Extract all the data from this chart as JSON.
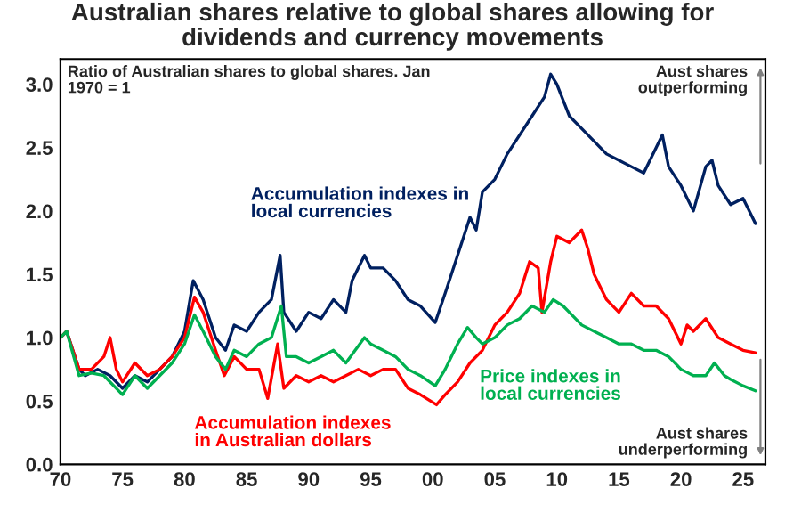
{
  "chart_data": {
    "type": "line",
    "title": "Australian shares relative to global shares allowing for\ndividends and currency movements",
    "xlim": [
      1970,
      2026.8
    ],
    "xticks": [
      {
        "value": 1970,
        "label": "70"
      },
      {
        "value": 1975,
        "label": "75"
      },
      {
        "value": 1980,
        "label": "80"
      },
      {
        "value": 1985,
        "label": "85"
      },
      {
        "value": 1990,
        "label": "90"
      },
      {
        "value": 1995,
        "label": "95"
      },
      {
        "value": 2000,
        "label": "00"
      },
      {
        "value": 2005,
        "label": "05"
      },
      {
        "value": 2010,
        "label": "10"
      },
      {
        "value": 2015,
        "label": "15"
      },
      {
        "value": 2020,
        "label": "20"
      },
      {
        "value": 2025,
        "label": "25"
      }
    ],
    "ylim": [
      0,
      3.2
    ],
    "yticks": [
      {
        "value": 0,
        "label": "0.0"
      },
      {
        "value": 0.5,
        "label": "0.5"
      },
      {
        "value": 1,
        "label": "1.0"
      },
      {
        "value": 1.5,
        "label": "1.5"
      },
      {
        "value": 2,
        "label": "2.0"
      },
      {
        "value": 2.5,
        "label": "2.5"
      },
      {
        "value": 3,
        "label": "3.0"
      }
    ],
    "grid": false,
    "legend": false,
    "marker": "none",
    "line_style": "solid",
    "annotations": [
      "Ratio of Australian shares to global shares. Jan 1970 = 1",
      "Aust shares\noutperforming",
      "Aust shares\nunderperforming"
    ],
    "series": [
      {
        "name": "Accumulation indexes in\nlocal currencies",
        "color": "#002060",
        "x": [
          1970,
          1970.5,
          1971.5,
          1972,
          1973,
          1974,
          1975,
          1976,
          1977,
          1978,
          1979,
          1980,
          1980.7,
          1981.5,
          1982.5,
          1983.3,
          1984,
          1985,
          1986,
          1987,
          1987.7,
          1988,
          1989,
          1990,
          1991,
          1992,
          1993,
          1993.5,
          1994.5,
          1995,
          1996,
          1997,
          1998,
          1999,
          2000.2,
          2001,
          2002,
          2003,
          2003.5,
          2004,
          2005,
          2006,
          2007,
          2008,
          2009,
          2009.5,
          2010,
          2011,
          2012,
          2013,
          2014,
          2015,
          2016,
          2017,
          2018,
          2018.5,
          2019,
          2020,
          2021,
          2022,
          2022.5,
          2023,
          2024,
          2025,
          2026
        ],
        "values": [
          1.0,
          1.05,
          0.75,
          0.7,
          0.75,
          0.7,
          0.6,
          0.7,
          0.65,
          0.75,
          0.85,
          1.05,
          1.45,
          1.3,
          1.0,
          0.9,
          1.1,
          1.05,
          1.2,
          1.3,
          1.65,
          1.2,
          1.05,
          1.2,
          1.15,
          1.3,
          1.2,
          1.45,
          1.65,
          1.55,
          1.55,
          1.45,
          1.3,
          1.25,
          1.12,
          1.35,
          1.65,
          1.95,
          1.85,
          2.15,
          2.25,
          2.45,
          2.6,
          2.75,
          2.9,
          3.08,
          3.0,
          2.75,
          2.65,
          2.55,
          2.45,
          2.4,
          2.35,
          2.3,
          2.5,
          2.6,
          2.35,
          2.2,
          2.0,
          2.35,
          2.4,
          2.2,
          2.05,
          2.1,
          1.9
        ]
      },
      {
        "name": "Accumulation indexes\nin Australian dollars",
        "color": "#ff0000",
        "x": [
          1970,
          1970.5,
          1971.5,
          1972.5,
          1973.5,
          1974,
          1974.5,
          1975,
          1976,
          1977,
          1978,
          1979,
          1980,
          1980.8,
          1981.5,
          1982.5,
          1983.2,
          1984,
          1985,
          1986,
          1986.7,
          1987.5,
          1988,
          1989,
          1990,
          1991,
          1992,
          1993,
          1994,
          1995,
          1996,
          1997,
          1998,
          1999,
          2000.3,
          2001,
          2002,
          2003,
          2004,
          2005,
          2006,
          2007,
          2007.8,
          2008.5,
          2008.8,
          2009.5,
          2010,
          2011,
          2012,
          2012.5,
          2013,
          2014,
          2015,
          2016,
          2017,
          2018,
          2019,
          2020,
          2020.5,
          2021,
          2022,
          2023,
          2024,
          2025,
          2026
        ],
        "values": [
          1.0,
          1.05,
          0.75,
          0.75,
          0.85,
          1.0,
          0.75,
          0.65,
          0.8,
          0.7,
          0.75,
          0.85,
          1.0,
          1.32,
          1.2,
          0.9,
          0.7,
          0.85,
          0.75,
          0.75,
          0.52,
          0.95,
          0.6,
          0.7,
          0.65,
          0.7,
          0.65,
          0.7,
          0.75,
          0.7,
          0.75,
          0.75,
          0.6,
          0.55,
          0.47,
          0.55,
          0.65,
          0.8,
          0.9,
          1.1,
          1.2,
          1.35,
          1.6,
          1.55,
          1.2,
          1.6,
          1.8,
          1.75,
          1.85,
          1.7,
          1.5,
          1.3,
          1.2,
          1.35,
          1.25,
          1.25,
          1.15,
          0.95,
          1.1,
          1.05,
          1.15,
          1.0,
          0.95,
          0.9,
          0.88
        ]
      },
      {
        "name": "Price indexes in\nlocal currencies",
        "color": "#00b050",
        "x": [
          1970,
          1970.5,
          1971.5,
          1972.5,
          1973.5,
          1975,
          1976,
          1977,
          1978,
          1979,
          1980,
          1980.8,
          1981.5,
          1982.5,
          1983.3,
          1984,
          1985,
          1986,
          1987,
          1987.8,
          1988.2,
          1989,
          1990,
          1991,
          1992,
          1993,
          1994.5,
          1995,
          1996,
          1997,
          1998,
          1999,
          2000.2,
          2001,
          2002,
          2002.8,
          2003.5,
          2004,
          2005,
          2006,
          2007,
          2008,
          2009,
          2009.7,
          2010.5,
          2011,
          2012,
          2013,
          2014,
          2015,
          2016,
          2017,
          2018,
          2019,
          2020,
          2021,
          2022,
          2022.7,
          2023.5,
          2024,
          2025,
          2026
        ],
        "values": [
          1.0,
          1.05,
          0.7,
          0.72,
          0.7,
          0.55,
          0.7,
          0.6,
          0.7,
          0.8,
          0.95,
          1.18,
          1.05,
          0.85,
          0.75,
          0.9,
          0.85,
          0.95,
          1.0,
          1.25,
          0.85,
          0.85,
          0.8,
          0.85,
          0.9,
          0.8,
          1.0,
          0.95,
          0.9,
          0.85,
          0.75,
          0.7,
          0.62,
          0.75,
          0.95,
          1.08,
          1.0,
          0.95,
          1.0,
          1.1,
          1.15,
          1.25,
          1.2,
          1.3,
          1.25,
          1.2,
          1.1,
          1.05,
          1.0,
          0.95,
          0.95,
          0.9,
          0.9,
          0.85,
          0.75,
          0.7,
          0.7,
          0.8,
          0.7,
          0.67,
          0.62,
          0.58
        ]
      }
    ]
  }
}
